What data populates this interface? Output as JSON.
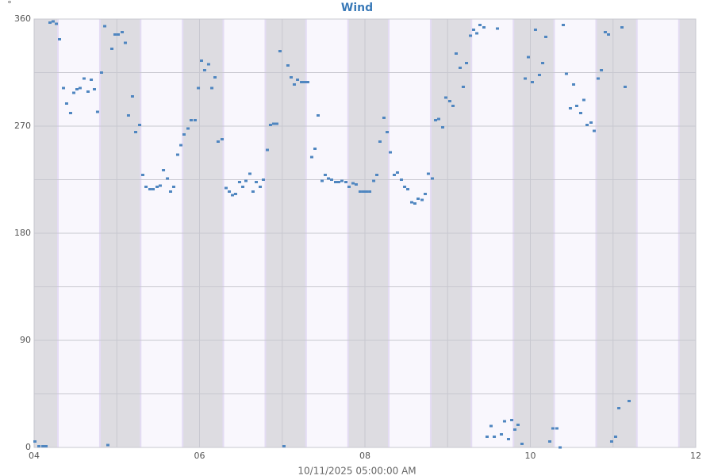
{
  "chart_data": {
    "type": "scatter",
    "title": "Wind",
    "y_label": "°",
    "x_label": "10/11/2025 05:00:00 AM",
    "xlim": [
      4,
      12
    ],
    "xticks": [
      {
        "value": 4,
        "label": "04"
      },
      {
        "value": 6,
        "label": "06"
      },
      {
        "value": 8,
        "label": "08"
      },
      {
        "value": 10,
        "label": "10"
      },
      {
        "value": 12,
        "label": "12"
      }
    ],
    "minor_xticks": [
      5,
      7,
      9,
      11
    ],
    "ylim": [
      0,
      360
    ],
    "yticks": [
      0,
      90,
      180,
      270,
      360
    ],
    "minor_yticks": [
      45,
      135,
      225,
      315
    ],
    "grid": true,
    "series": [
      {
        "name": "Wind",
        "color": "#4f86c0",
        "x": [
          4.01,
          4.058,
          4.106,
          4.144,
          4.192,
          4.23,
          4.269,
          4.307,
          4.355,
          4.393,
          4.441,
          4.48,
          4.518,
          4.556,
          4.604,
          4.652,
          4.691,
          4.729,
          4.767,
          4.815,
          4.854,
          4.892,
          4.94,
          4.978,
          5.017,
          5.065,
          5.103,
          5.141,
          5.189,
          5.228,
          5.276,
          5.314,
          5.353,
          5.4,
          5.439,
          5.487,
          5.525,
          5.564,
          5.612,
          5.65,
          5.688,
          5.736,
          5.775,
          5.813,
          5.861,
          5.899,
          5.947,
          5.986,
          6.024,
          6.062,
          6.11,
          6.149,
          6.187,
          6.225,
          6.273,
          6.321,
          6.36,
          6.398,
          6.436,
          6.484,
          6.523,
          6.561,
          6.609,
          6.647,
          6.686,
          6.734,
          6.772,
          6.82,
          6.858,
          6.897,
          6.935,
          6.973,
          7.021,
          7.069,
          7.108,
          7.146,
          7.185,
          7.233,
          7.271,
          7.309,
          7.357,
          7.396,
          7.434,
          7.482,
          7.52,
          7.559,
          7.597,
          7.645,
          7.683,
          7.722,
          7.77,
          7.808,
          7.856,
          7.894,
          7.942,
          7.981,
          8.019,
          8.058,
          8.106,
          8.144,
          8.182,
          8.23,
          8.269,
          8.307,
          8.355,
          8.393,
          8.441,
          8.48,
          8.518,
          8.566,
          8.604,
          8.643,
          8.691,
          8.729,
          8.767,
          8.815,
          8.854,
          8.892,
          8.94,
          8.978,
          9.026,
          9.065,
          9.103,
          9.151,
          9.189,
          9.228,
          9.276,
          9.314,
          9.353,
          9.391,
          9.439,
          9.477,
          9.525,
          9.564,
          9.602,
          9.65,
          9.688,
          9.736,
          9.775,
          9.813,
          9.851,
          9.899,
          9.938,
          9.976,
          10.024,
          10.062,
          10.11,
          10.149,
          10.187,
          10.235,
          10.273,
          10.321,
          10.36,
          10.398,
          10.436,
          10.484,
          10.523,
          10.561,
          10.609,
          10.647,
          10.686,
          10.734,
          10.772,
          10.82,
          10.859,
          10.906,
          10.945,
          10.983,
          11.031,
          11.07,
          11.108,
          11.146,
          11.194
        ],
        "values": [
          5,
          1,
          1,
          1,
          357,
          358,
          356,
          343,
          302,
          289,
          281,
          298,
          301,
          302,
          310,
          299,
          309,
          301,
          282,
          315,
          354,
          2,
          335,
          347,
          347,
          349,
          340,
          279,
          295,
          265,
          271,
          229,
          219,
          217,
          217,
          219,
          220,
          233,
          226,
          215,
          219,
          246,
          254,
          263,
          268,
          275,
          275,
          302,
          325,
          317,
          322,
          302,
          311,
          257,
          259,
          218,
          215,
          212,
          213,
          223,
          219,
          224,
          230,
          215,
          223,
          219,
          225,
          250,
          271,
          272,
          272,
          333,
          1,
          321,
          311,
          305,
          309,
          307,
          307,
          307,
          244,
          251,
          279,
          224,
          229,
          226,
          225,
          223,
          223,
          224,
          223,
          219,
          222,
          221,
          215,
          215,
          215,
          215,
          224,
          229,
          257,
          277,
          265,
          248,
          229,
          231,
          225,
          219,
          217,
          206,
          205,
          209,
          208,
          213,
          230,
          226,
          275,
          276,
          269,
          294,
          291,
          287,
          331,
          319,
          303,
          323,
          346,
          351,
          348,
          355,
          353,
          9,
          18,
          9,
          352,
          11,
          22,
          7,
          23,
          15,
          19,
          3,
          310,
          328,
          307,
          351,
          313,
          323,
          345,
          5,
          16,
          16,
          0,
          355,
          314,
          285,
          305,
          287,
          281,
          292,
          271,
          273,
          266,
          310,
          317,
          349,
          347,
          5,
          9,
          33,
          353,
          303,
          39
        ]
      }
    ]
  }
}
